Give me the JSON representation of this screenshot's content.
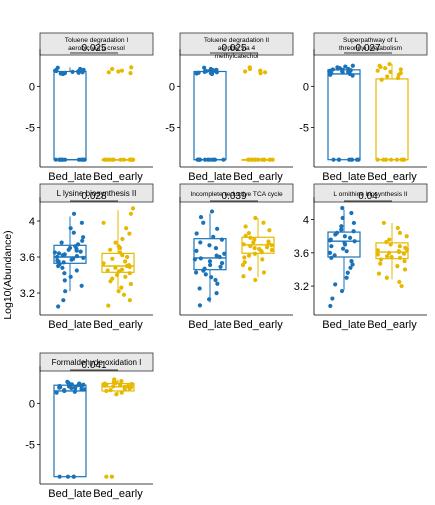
{
  "figure": {
    "ylabel": "Log10(Abundance)",
    "colors": {
      "Bed_late": "#1a73b8",
      "Bed_early": "#e6b800"
    }
  },
  "chart_data": [
    {
      "type": "box",
      "title": "Toluene degradation I aerobic via o cresol",
      "categories": [
        "Bed_late",
        "Bed_early"
      ],
      "pvalue": "0.025",
      "ylim": [
        -9.3,
        3.8
      ],
      "yticks": [
        0,
        -5
      ],
      "boxes": [
        {
          "q1": -8.9,
          "median": -8.9,
          "q3": 1.8,
          "min": -8.9,
          "max": 2.3
        },
        {
          "q1": -8.9,
          "median": -8.9,
          "q3": -8.9,
          "min": -8.9,
          "max": -8.9
        }
      ],
      "points": [
        [
          2.25,
          2.1,
          2.0,
          1.95,
          1.9,
          1.85,
          1.8,
          1.75,
          1.7,
          1.65,
          1.6,
          1.55,
          1.5,
          -8.9,
          -8.9,
          -8.9,
          -8.9,
          -8.9,
          -8.9,
          -8.9,
          -8.9,
          -8.9,
          -8.9,
          -8.9,
          -8.9
        ],
        [
          2.3,
          2.1,
          1.9,
          1.8,
          1.7,
          1.6,
          -8.9,
          -8.9,
          -8.9,
          -8.9,
          -8.9,
          -8.9,
          -8.9,
          -8.9,
          -8.9,
          -8.9,
          -8.9,
          -8.9,
          -8.9,
          -8.9
        ]
      ]
    },
    {
      "type": "box",
      "title": "Toluene degradation II aerobic via 4 methylcatechol",
      "categories": [
        "Bed_late",
        "Bed_early"
      ],
      "pvalue": "0.025",
      "ylim": [
        -9.3,
        3.8
      ],
      "yticks": [
        0,
        -5
      ],
      "boxes": [
        {
          "q1": -8.9,
          "median": -8.9,
          "q3": 1.8,
          "min": -8.9,
          "max": 2.3
        },
        {
          "q1": -8.9,
          "median": -8.9,
          "q3": -8.9,
          "min": -8.9,
          "max": -8.9
        }
      ],
      "points": [
        [
          2.25,
          2.1,
          2.0,
          1.95,
          1.9,
          1.85,
          1.8,
          1.75,
          1.7,
          1.65,
          1.6,
          1.55,
          1.5,
          -8.9,
          -8.9,
          -8.9,
          -8.9,
          -8.9,
          -8.9,
          -8.9,
          -8.9,
          -8.9,
          -8.9,
          -8.9,
          -8.9
        ],
        [
          2.3,
          2.1,
          1.9,
          1.8,
          1.7,
          1.6,
          -8.9,
          -8.9,
          -8.9,
          -8.9,
          -8.9,
          -8.9,
          -8.9,
          -8.9,
          -8.9,
          -8.9,
          -8.9,
          -8.9,
          -8.9,
          -8.9
        ]
      ]
    },
    {
      "type": "box",
      "title": "Superpathway of L threonine metabolism",
      "categories": [
        "Bed_late",
        "Bed_early"
      ],
      "pvalue": "0.027",
      "ylim": [
        -9.3,
        3.8
      ],
      "yticks": [
        0,
        -5
      ],
      "boxes": [
        {
          "q1": -8.9,
          "median": 1.5,
          "q3": 2.0,
          "min": -8.9,
          "max": 2.5
        },
        {
          "q1": -8.9,
          "median": -8.9,
          "q3": 0.9,
          "min": -8.9,
          "max": 2.7
        }
      ],
      "points": [
        [
          2.5,
          2.4,
          2.3,
          2.2,
          2.15,
          2.1,
          2.05,
          2.0,
          1.95,
          1.9,
          1.85,
          1.8,
          1.75,
          1.7,
          1.65,
          1.6,
          1.5,
          1.4,
          1.3,
          -8.9,
          -8.9,
          -8.9,
          -8.9,
          -8.9,
          -8.9,
          -8.9,
          -8.9
        ],
        [
          2.7,
          2.5,
          2.35,
          2.2,
          2.05,
          1.9,
          1.75,
          1.6,
          1.4,
          1.2,
          1.0,
          0.8,
          -8.9,
          -8.9,
          -8.9,
          -8.9,
          -8.9,
          -8.9,
          -8.9,
          -8.9,
          -8.9,
          -8.9
        ]
      ]
    },
    {
      "type": "box",
      "title": "L lysine biosynthesis II",
      "categories": [
        "Bed_late",
        "Bed_early"
      ],
      "pvalue": "0.028",
      "ylim": [
        3.0,
        4.2
      ],
      "yticks": [
        4.0,
        3.6,
        3.2
      ],
      "boxes": [
        {
          "q1": 3.53,
          "median": 3.6,
          "q3": 3.73,
          "min": 3.22,
          "max": 4.05
        },
        {
          "q1": 3.43,
          "median": 3.5,
          "q3": 3.64,
          "min": 3.2,
          "max": 4.12
        }
      ],
      "points": [
        [
          4.08,
          3.98,
          3.92,
          3.87,
          3.82,
          3.78,
          3.76,
          3.74,
          3.72,
          3.7,
          3.69,
          3.68,
          3.67,
          3.66,
          3.65,
          3.64,
          3.63,
          3.62,
          3.61,
          3.6,
          3.59,
          3.58,
          3.57,
          3.56,
          3.55,
          3.54,
          3.52,
          3.5,
          3.48,
          3.45,
          3.42,
          3.38,
          3.34,
          3.28,
          3.22,
          3.12,
          3.05
        ],
        [
          4.14,
          4.08,
          3.98,
          3.92,
          3.86,
          3.8,
          3.76,
          3.72,
          3.7,
          3.68,
          3.65,
          3.62,
          3.6,
          3.58,
          3.55,
          3.53,
          3.51,
          3.5,
          3.49,
          3.48,
          3.46,
          3.45,
          3.44,
          3.42,
          3.4,
          3.38,
          3.36,
          3.33,
          3.3,
          3.26,
          3.22,
          3.18,
          3.12,
          3.06
        ]
      ]
    },
    {
      "type": "box",
      "title": "Incomplete reductive TCA cycle",
      "categories": [
        "Bed_late",
        "Bed_early"
      ],
      "pvalue": "0.039",
      "ylim": [
        1.4,
        3.7
      ],
      "yticks": [],
      "boxes": [
        {
          "q1": 2.28,
          "median": 2.53,
          "q3": 2.94,
          "min": 1.58,
          "max": 3.48
        },
        {
          "q1": 2.63,
          "median": 2.81,
          "q3": 2.97,
          "min": 2.12,
          "max": 3.38
        }
      ],
      "points": [
        [
          3.52,
          3.4,
          3.28,
          3.15,
          3.05,
          2.98,
          2.92,
          2.86,
          2.8,
          2.74,
          2.68,
          2.62,
          2.58,
          2.55,
          2.52,
          2.5,
          2.46,
          2.42,
          2.38,
          2.34,
          2.3,
          2.26,
          2.22,
          2.18,
          2.12,
          2.06,
          1.98,
          1.88,
          1.78,
          1.65,
          1.52
        ],
        [
          3.38,
          3.28,
          3.2,
          3.12,
          3.06,
          3.0,
          2.96,
          2.92,
          2.88,
          2.86,
          2.84,
          2.82,
          2.8,
          2.78,
          2.76,
          2.74,
          2.72,
          2.7,
          2.68,
          2.65,
          2.62,
          2.58,
          2.54,
          2.5,
          2.44,
          2.38,
          2.3,
          2.22,
          2.14,
          2.06
        ]
      ]
    },
    {
      "type": "box",
      "title": "L ornithine biosynthesis II",
      "categories": [
        "Bed_late",
        "Bed_early"
      ],
      "pvalue": "0.04",
      "ylim": [
        2.9,
        4.2
      ],
      "yticks": [
        4.0,
        3.6,
        3.2
      ],
      "boxes": [
        {
          "q1": 3.55,
          "median": 3.74,
          "q3": 3.85,
          "min": 3.15,
          "max": 4.12
        },
        {
          "q1": 3.53,
          "median": 3.61,
          "q3": 3.72,
          "min": 3.28,
          "max": 3.96
        }
      ],
      "points": [
        [
          4.14,
          4.08,
          4.02,
          3.96,
          3.92,
          3.88,
          3.86,
          3.84,
          3.82,
          3.8,
          3.78,
          3.76,
          3.75,
          3.74,
          3.72,
          3.7,
          3.68,
          3.65,
          3.62,
          3.6,
          3.57,
          3.54,
          3.5,
          3.46,
          3.42,
          3.36,
          3.3,
          3.22,
          3.14,
          3.05,
          2.96
        ],
        [
          3.96,
          3.9,
          3.84,
          3.8,
          3.76,
          3.73,
          3.7,
          3.68,
          3.66,
          3.64,
          3.63,
          3.62,
          3.61,
          3.6,
          3.59,
          3.58,
          3.56,
          3.55,
          3.54,
          3.52,
          3.5,
          3.47,
          3.44,
          3.4,
          3.35,
          3.3,
          3.25,
          3.2
        ]
      ]
    },
    {
      "type": "box",
      "title": "Formaldehyde oxidation I",
      "categories": [
        "Bed_late",
        "Bed_early"
      ],
      "pvalue": "0.041",
      "ylim": [
        -9.3,
        3.8
      ],
      "yticks": [
        0,
        -5
      ],
      "boxes": [
        {
          "q1": -8.9,
          "median": 1.5,
          "q3": 2.2,
          "min": -8.9,
          "max": 2.6
        },
        {
          "q1": 1.5,
          "median": 2.0,
          "q3": 2.4,
          "min": 1.0,
          "max": 2.9
        }
      ],
      "points": [
        [
          2.6,
          2.5,
          2.4,
          2.3,
          2.25,
          2.2,
          2.15,
          2.1,
          2.05,
          2.0,
          1.95,
          1.9,
          1.85,
          1.8,
          1.75,
          1.7,
          1.6,
          1.5,
          1.4,
          1.3,
          -8.9,
          -8.9,
          -8.9,
          -8.9
        ],
        [
          2.9,
          2.7,
          2.6,
          2.5,
          2.45,
          2.4,
          2.35,
          2.3,
          2.25,
          2.2,
          2.15,
          2.1,
          2.05,
          2.0,
          1.9,
          1.8,
          1.7,
          1.6,
          1.5,
          1.3,
          1.1,
          -8.9,
          -8.9,
          -8.9
        ]
      ]
    }
  ]
}
